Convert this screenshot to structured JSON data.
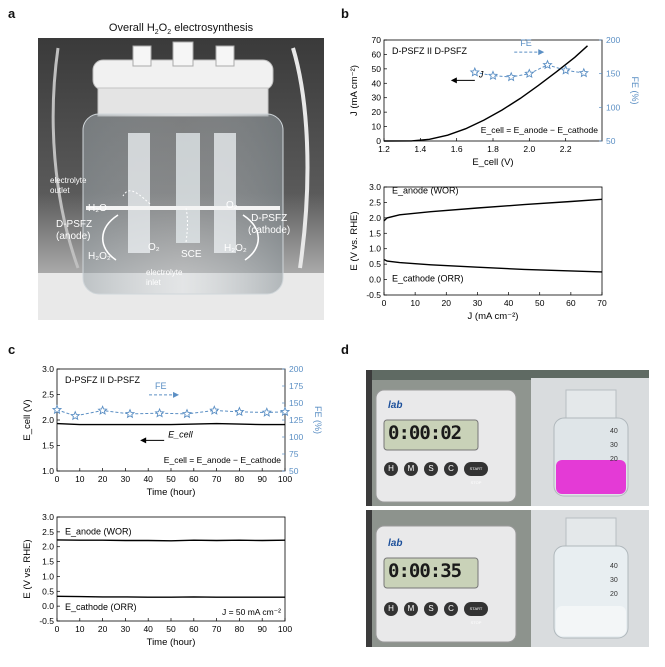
{
  "panels": {
    "a": {
      "label": "a",
      "title_pre": "Overall H",
      "title_sub1": "2",
      "title_mid": "O",
      "title_sub2": "2",
      "title_post": " electrosynthesis",
      "labels": {
        "electrolyte_outlet": [
          "electrolyte",
          "outlet"
        ],
        "anode": [
          "D-PSFZ",
          "(anode)"
        ],
        "cathode": [
          "D-PSFZ",
          "(cathode)"
        ],
        "h2o": "H₂O",
        "h2o2_left": "H₂O₂",
        "o2": "O₂",
        "sce": "SCE",
        "o2_right": "O₂",
        "h2o2_right": "H₂O₂",
        "electrolyte_inlet": [
          "electrolyte",
          "inlet"
        ]
      }
    },
    "b": {
      "label": "b"
    },
    "c": {
      "label": "c"
    },
    "d": {
      "label": "d",
      "timer_top": "0:00:02",
      "timer_bottom": "0:00:35",
      "timer_brand": "lab",
      "timer_buttons": [
        "H",
        "M",
        "S",
        "C",
        "START STOP"
      ],
      "bottle_marks": [
        "40",
        "30",
        "20"
      ]
    }
  },
  "chart_data": [
    {
      "id": "b-top",
      "type": "line",
      "annotation": "D-PSFZ II D-PSFZ",
      "xlabel": "E_cell (V)",
      "ylabel": "J (mA cm⁻²)",
      "y2label": "FE (%)",
      "xlim": [
        1.2,
        2.4
      ],
      "ylim": [
        0,
        70
      ],
      "y2lim": [
        50,
        200
      ],
      "xticks": [
        "1.2",
        "1.4",
        "1.6",
        "1.8",
        "2.0",
        "2.2"
      ],
      "yticks": [
        "0",
        "10",
        "20",
        "30",
        "40",
        "50",
        "60",
        "70"
      ],
      "y2ticks": [
        "50",
        "100",
        "150",
        "200"
      ],
      "series": [
        {
          "name": "J",
          "axis": "left",
          "style": "solid",
          "x": [
            1.2,
            1.35,
            1.45,
            1.55,
            1.65,
            1.75,
            1.85,
            1.95,
            2.05,
            2.15,
            2.25,
            2.32
          ],
          "y": [
            0,
            0.1,
            1.2,
            4,
            8.5,
            14.5,
            21.5,
            29.5,
            38.5,
            48,
            58,
            66
          ]
        },
        {
          "name": "FE",
          "axis": "right",
          "style": "dashed-star",
          "x": [
            1.7,
            1.8,
            1.9,
            2.0,
            2.1,
            2.2,
            2.3
          ],
          "y": [
            152,
            147,
            145,
            150,
            163,
            155,
            151
          ]
        }
      ],
      "equation": "E_cell = E_anode − E_cathode"
    },
    {
      "id": "b-bottom",
      "type": "line",
      "xlabel": "J (mA cm⁻²)",
      "ylabel": "E (V vs. RHE)",
      "xlim": [
        0,
        70
      ],
      "ylim": [
        -0.5,
        3.0
      ],
      "xticks": [
        "0",
        "10",
        "20",
        "30",
        "40",
        "50",
        "60",
        "70"
      ],
      "yticks": [
        "-0.5",
        "0.0",
        "0.5",
        "1.0",
        "1.5",
        "2.0",
        "2.5",
        "3.0"
      ],
      "series": [
        {
          "name": "E_anode (WOR)",
          "x": [
            0,
            1,
            5,
            15,
            30,
            45,
            60,
            70
          ],
          "y": [
            1.9,
            2.0,
            2.1,
            2.2,
            2.32,
            2.43,
            2.53,
            2.6
          ]
        },
        {
          "name": "E_cathode (ORR)",
          "x": [
            0,
            1,
            5,
            15,
            30,
            45,
            60,
            70
          ],
          "y": [
            0.65,
            0.6,
            0.55,
            0.48,
            0.4,
            0.33,
            0.28,
            0.25
          ]
        }
      ]
    },
    {
      "id": "c-top",
      "type": "line",
      "annotation": "D-PSFZ II D-PSFZ",
      "xlabel": "Time (hour)",
      "ylabel": "E_cell (V)",
      "y2label": "FE (%)",
      "xlim": [
        0,
        100
      ],
      "ylim": [
        1.0,
        3.0
      ],
      "y2lim": [
        50,
        200
      ],
      "xticks": [
        "0",
        "10",
        "20",
        "30",
        "40",
        "50",
        "60",
        "70",
        "80",
        "90",
        "100"
      ],
      "yticks": [
        "1.0",
        "1.5",
        "2.0",
        "2.5",
        "3.0"
      ],
      "y2ticks": [
        "50",
        "75",
        "100",
        "125",
        "150",
        "175",
        "200"
      ],
      "series": [
        {
          "name": "E_cell",
          "axis": "left",
          "style": "solid",
          "x": [
            0,
            10,
            20,
            30,
            40,
            50,
            60,
            70,
            80,
            90,
            100
          ],
          "y": [
            1.93,
            1.91,
            1.91,
            1.91,
            1.91,
            1.91,
            1.92,
            1.93,
            1.92,
            1.91,
            1.91
          ]
        },
        {
          "name": "FE",
          "axis": "right",
          "style": "dashed-star",
          "x": [
            0,
            8,
            20,
            32,
            45,
            57,
            69,
            80,
            92,
            100
          ],
          "y": [
            140,
            131,
            139,
            134,
            135,
            134,
            139,
            137,
            136,
            137
          ]
        }
      ],
      "equation": "E_cell = E_anode − E_cathode"
    },
    {
      "id": "c-bottom",
      "type": "line",
      "xlabel": "Time (hour)",
      "ylabel": "E (V vs. RHE)",
      "xlim": [
        0,
        100
      ],
      "ylim": [
        -0.5,
        3.0
      ],
      "xticks": [
        "0",
        "10",
        "20",
        "30",
        "40",
        "50",
        "60",
        "70",
        "80",
        "90",
        "100"
      ],
      "yticks": [
        "-0.5",
        "0.0",
        "0.5",
        "1.0",
        "1.5",
        "2.0",
        "2.5",
        "3.0"
      ],
      "series": [
        {
          "name": "E_anode (WOR)",
          "x": [
            0,
            10,
            20,
            30,
            40,
            50,
            60,
            70,
            80,
            90,
            100
          ],
          "y": [
            2.23,
            2.22,
            2.22,
            2.21,
            2.21,
            2.2,
            2.22,
            2.21,
            2.22,
            2.21,
            2.22
          ]
        },
        {
          "name": "E_cathode (ORR)",
          "x": [
            0,
            10,
            20,
            30,
            40,
            50,
            60,
            70,
            80,
            90,
            100
          ],
          "y": [
            0.33,
            0.32,
            0.31,
            0.31,
            0.3,
            0.3,
            0.31,
            0.3,
            0.3,
            0.3,
            0.3
          ]
        }
      ],
      "note": "J = 50 mA cm⁻²"
    }
  ]
}
